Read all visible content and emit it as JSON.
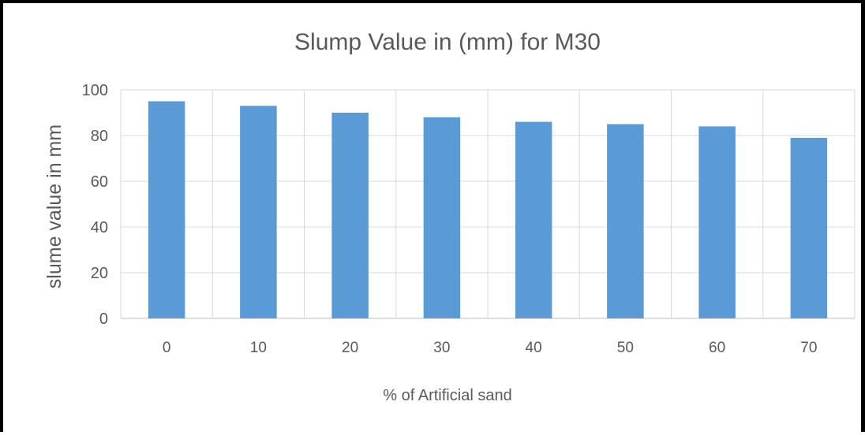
{
  "chart_data": {
    "type": "bar",
    "title": "Slump Value in  (mm) for M30",
    "xlabel": "% of Artificial sand",
    "ylabel": "slume value  in mm",
    "categories": [
      "0",
      "10",
      "20",
      "30",
      "40",
      "50",
      "60",
      "70"
    ],
    "values": [
      95,
      93,
      90,
      88,
      86,
      85,
      84,
      79
    ],
    "ylim": [
      0,
      100
    ],
    "yticks": [
      "0",
      "20",
      "40",
      "60",
      "80",
      "100"
    ],
    "grid": true,
    "legend": "none",
    "bar_color": "#5B9BD5"
  }
}
